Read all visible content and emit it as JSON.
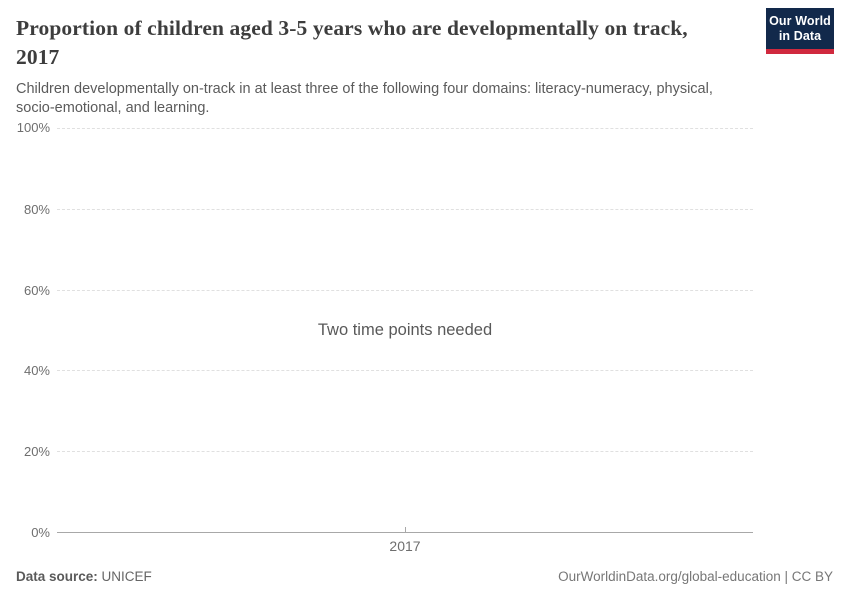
{
  "header": {
    "title": "Proportion of children aged 3-5 years who are developmentally on track, 2017",
    "subtitle": "Children developmentally on-track in at least three of the following four domains: literacy-numeracy, physical, socio-emotional, and learning."
  },
  "logo": {
    "line1": "Our World",
    "line2": "in Data",
    "background_color": "#12294b",
    "accent_color": "#d0293e"
  },
  "chart_data": {
    "type": "line",
    "title": "Proportion of children aged 3-5 years who are developmentally on track, 2017",
    "series": [],
    "empty_state_message": "Two time points needed",
    "x_ticks": [
      "2017"
    ],
    "y_ticks": [
      "0%",
      "20%",
      "40%",
      "60%",
      "80%",
      "100%"
    ],
    "ylim": [
      0,
      100
    ],
    "xlabel": "",
    "ylabel": "",
    "grid": "horizontal-dashed",
    "legend_position": "none"
  },
  "footer": {
    "source_label": "Data source:",
    "source_value": "UNICEF",
    "attribution": "OurWorldinData.org/global-education | CC BY"
  },
  "colors": {
    "title_text": "#3d3d3d",
    "subtitle_text": "#5b5b5b",
    "axis_labels": "#6e6e6e",
    "gridline": "#e0e0e0",
    "axis_line": "#a8a8a8",
    "note_text": "#595959"
  }
}
